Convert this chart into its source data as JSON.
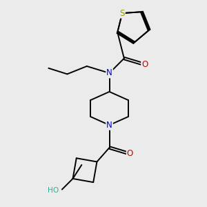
{
  "bg_color": "#ebebeb",
  "bond_color": "#000000",
  "atom_colors": {
    "S": "#999900",
    "N": "#0000cc",
    "O": "#cc0000",
    "HO": "#3aaa99"
  },
  "figsize": [
    3.0,
    3.0
  ],
  "dpi": 100,
  "lw": 1.4,
  "fs": 8.5
}
